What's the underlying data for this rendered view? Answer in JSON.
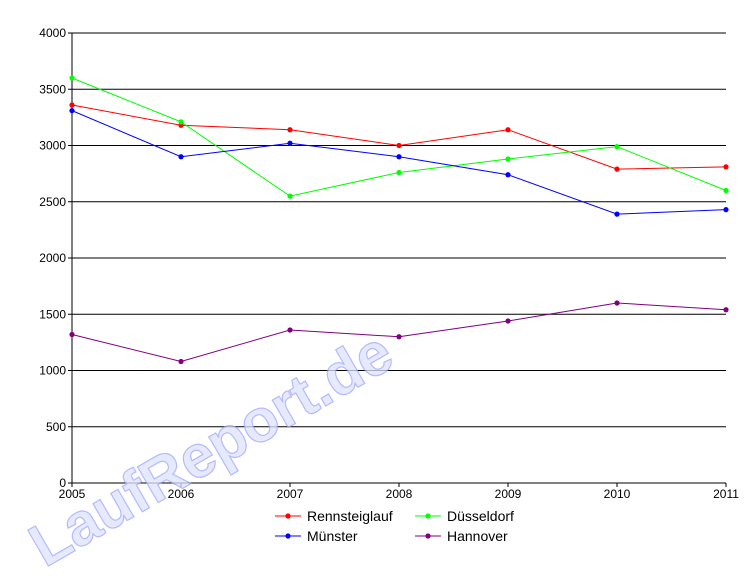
{
  "chart_data": {
    "type": "line",
    "x": [
      "2005",
      "2006",
      "2007",
      "2008",
      "2009",
      "2010",
      "2011"
    ],
    "ylim": [
      0,
      4000
    ],
    "yticks": [
      "0",
      "500",
      "1000",
      "1500",
      "2000",
      "2500",
      "3000",
      "3500",
      "4000"
    ],
    "grid": true,
    "legend_position": "bottom",
    "series": [
      {
        "name": "Rennsteiglauf",
        "color": "#ff0000",
        "values": [
          3360,
          3180,
          3140,
          3000,
          3140,
          2790,
          2810
        ]
      },
      {
        "name": "Düsseldorf",
        "color": "#00ff00",
        "values": [
          3600,
          3210,
          2550,
          2760,
          2880,
          2990,
          2600
        ]
      },
      {
        "name": "Münster",
        "color": "#0000ff",
        "values": [
          3310,
          2900,
          3020,
          2900,
          2740,
          2390,
          2430
        ]
      },
      {
        "name": "Hannover",
        "color": "#800080",
        "values": [
          1320,
          1080,
          1360,
          1300,
          1440,
          1600,
          1540
        ]
      }
    ],
    "watermark": "LaufReport.de"
  }
}
